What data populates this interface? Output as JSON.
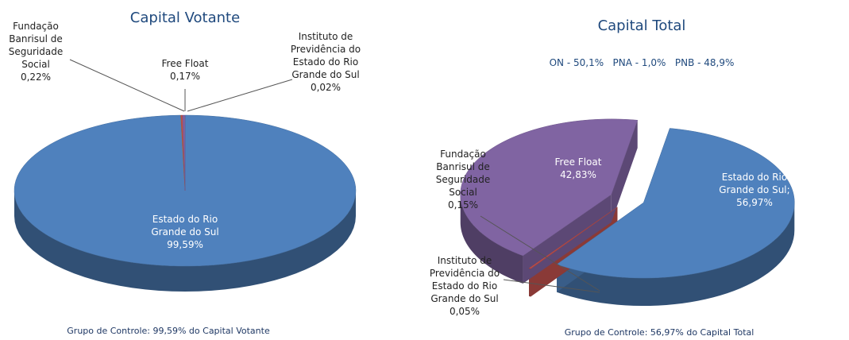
{
  "chart_data": [
    {
      "type": "pie3d",
      "title": "Capital Votante",
      "categories": [
        "Estado do Rio Grande do Sul",
        "Instituto de Previdência do Estado do Rio Grande do Sul",
        "Free Float",
        "Fundação Banrisul de Seguridade Social"
      ],
      "values": [
        99.59,
        0.02,
        0.17,
        0.22
      ],
      "value_labels": [
        "99,59%",
        "0,02%",
        "0,17%",
        "0,22%"
      ],
      "colors": [
        "#4f81bd",
        "#9bbb59",
        "#c0504d",
        "#8064a2"
      ],
      "note": "Grupo de Controle: 99,59% do Capital Votante"
    },
    {
      "type": "pie3d",
      "title": "Capital Total",
      "subtitle": "ON - 50,1%   PNA - 1,0%   PNB - 48,9%",
      "categories": [
        "Estado do Rio Grande do Sul;",
        "Instituto de Previdência do Estado do Rio Grande do Sul",
        "Fundação Banrisul de Seguridade Social",
        "Free Float"
      ],
      "values": [
        56.97,
        0.05,
        0.15,
        42.83
      ],
      "value_labels": [
        "56,97%",
        "0,05%",
        "0,15%",
        "42,83%"
      ],
      "colors": [
        "#4f81bd",
        "#c0504d",
        "#c0504d",
        "#8064a2"
      ],
      "exploded": true,
      "note": "Grupo de Controle:  56,97% do Capital Total"
    }
  ]
}
